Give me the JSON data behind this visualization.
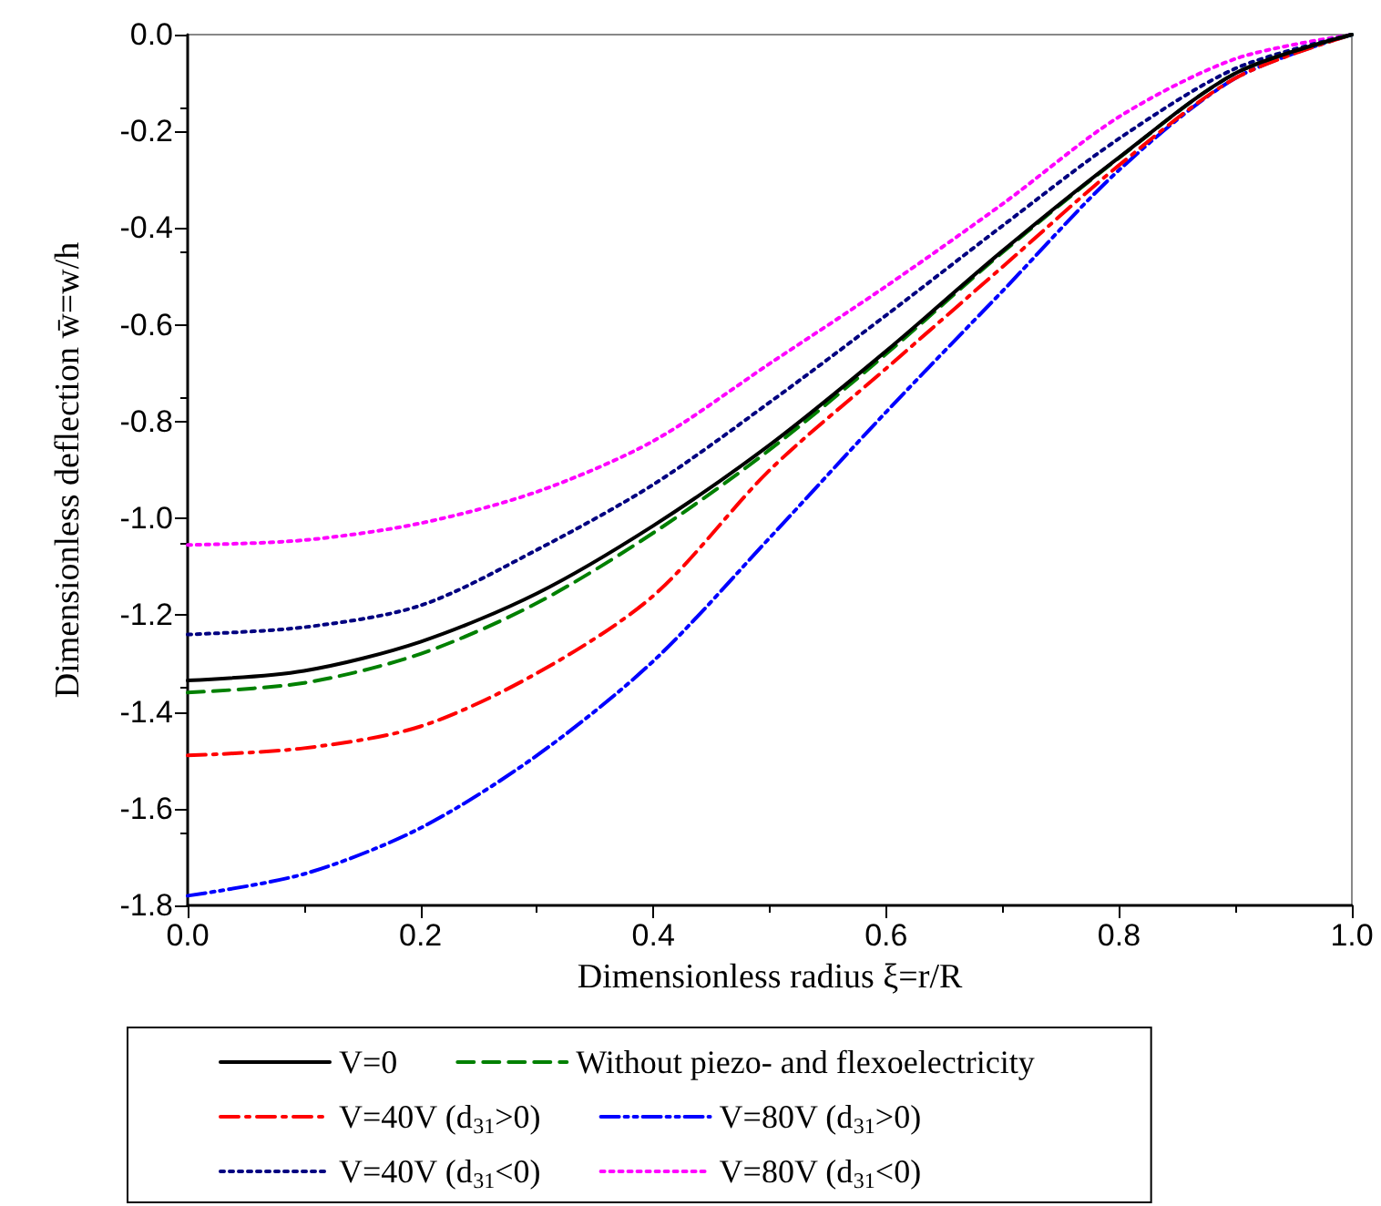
{
  "chart_data": {
    "type": "line",
    "xlabel": "Dimensionless radius ξ=r/R",
    "ylabel": "Dimensionless deflection w̄=w/h",
    "x": [
      0,
      0.1,
      0.2,
      0.3,
      0.4,
      0.5,
      0.6,
      0.7,
      0.8,
      0.9,
      1.0
    ],
    "xlim": [
      0,
      1
    ],
    "xticks": [
      {
        "value": 0,
        "label": "0.0"
      },
      {
        "value": 0.2,
        "label": "0.2"
      },
      {
        "value": 0.4,
        "label": "0.4"
      },
      {
        "value": 0.6,
        "label": "0.6"
      },
      {
        "value": 0.8,
        "label": "0.8"
      },
      {
        "value": 1,
        "label": "1.0"
      }
    ],
    "ylim": [
      -1.8,
      0
    ],
    "yticks": [
      {
        "value": -1.8,
        "label": "-1.8"
      },
      {
        "value": -1.6,
        "label": "-1.6"
      },
      {
        "value": -1.4,
        "label": "-1.4"
      },
      {
        "value": -1.2,
        "label": "-1.2"
      },
      {
        "value": -1.0,
        "label": "-1.0"
      },
      {
        "value": -0.8,
        "label": "-0.8"
      },
      {
        "value": -0.6,
        "label": "-0.6"
      },
      {
        "value": -0.4,
        "label": "-0.4"
      },
      {
        "value": -0.2,
        "label": "-0.2"
      },
      {
        "value": 0,
        "label": "0.0"
      }
    ],
    "grid": false,
    "legend": "bottom",
    "marker": "none",
    "series": [
      {
        "name": "V=0",
        "color": "#000000",
        "line_style": "solid",
        "values": [
          -1.335,
          -1.315,
          -1.255,
          -1.155,
          -1.015,
          -0.848,
          -0.654,
          -0.447,
          -0.254,
          -0.08,
          0
        ]
      },
      {
        "name": "Without piezo- and flexoelectricity",
        "color": "#008000",
        "line_style": "dashed",
        "values": [
          -1.36,
          -1.34,
          -1.28,
          -1.175,
          -1.03,
          -0.858,
          -0.66,
          -0.45,
          -0.255,
          -0.08,
          0
        ]
      },
      {
        "name": "V=40V (d$_{31}$>0)",
        "color": "#ff0000",
        "line_style": "dashdot",
        "values": [
          -1.49,
          -1.475,
          -1.43,
          -1.32,
          -1.16,
          -0.9,
          -0.69,
          -0.48,
          -0.27,
          -0.09,
          0
        ]
      },
      {
        "name": "V=80V (d$_{31}$>0)",
        "color": "#0000ff",
        "line_style": "dashdotdot",
        "values": [
          -1.78,
          -1.735,
          -1.64,
          -1.49,
          -1.295,
          -1.04,
          -0.78,
          -0.53,
          -0.28,
          -0.09,
          0
        ]
      },
      {
        "name": "V=40V (d$_{31}$<0)",
        "color": "#000080",
        "line_style": "dotted",
        "values": [
          -1.24,
          -1.225,
          -1.18,
          -1.065,
          -0.93,
          -0.76,
          -0.58,
          -0.395,
          -0.215,
          -0.07,
          0
        ]
      },
      {
        "name": "V=80V (d$_{31}$<0)",
        "color": "#ff00ff",
        "line_style": "dotted",
        "values": [
          -1.055,
          -1.045,
          -1.01,
          -0.945,
          -0.84,
          -0.68,
          -0.52,
          -0.35,
          -0.17,
          -0.05,
          0
        ]
      }
    ]
  }
}
